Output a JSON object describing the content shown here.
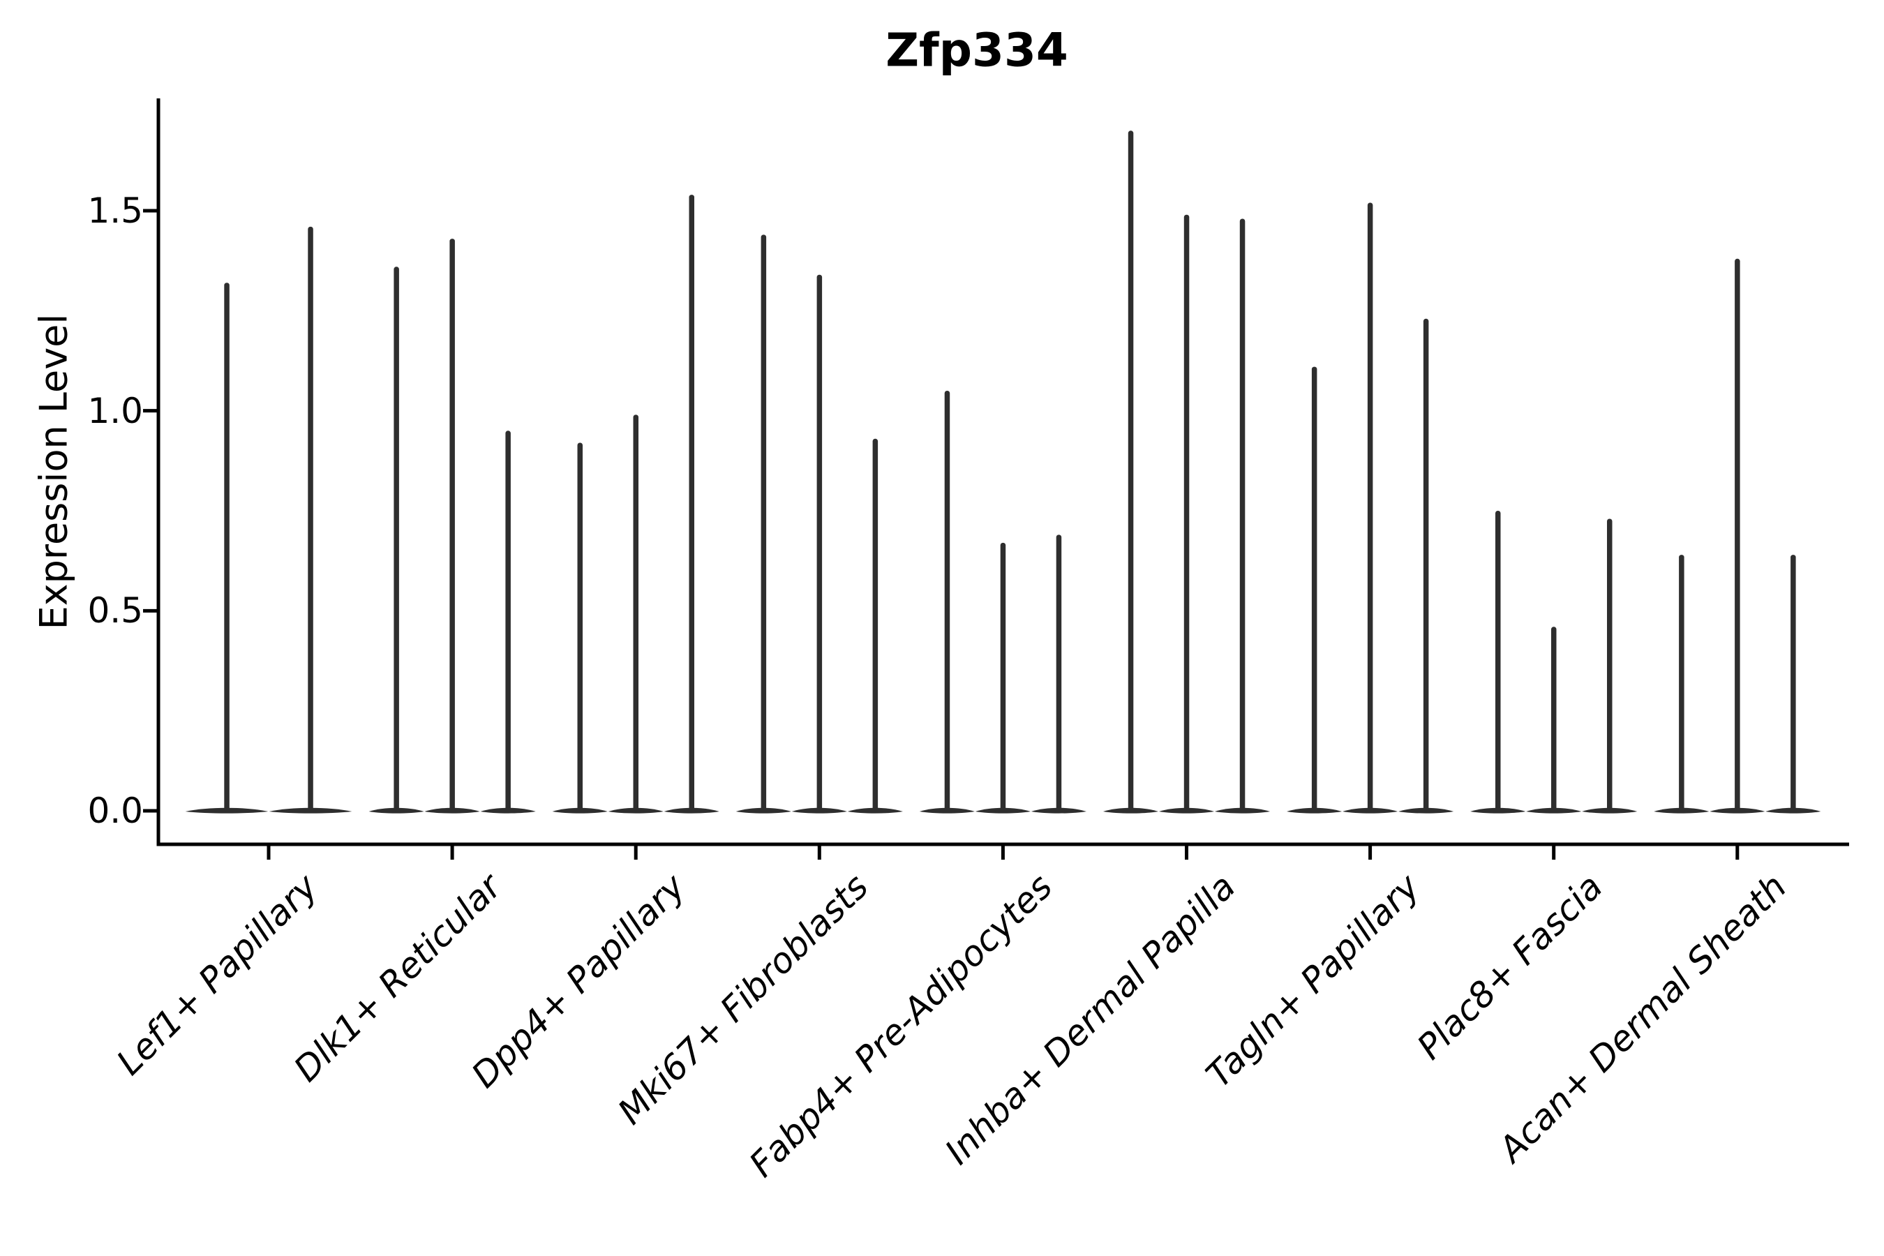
{
  "chart_data": {
    "type": "violin",
    "title": "Zfp334",
    "ylabel": "Expression Level",
    "xlabel": "",
    "legend": "none",
    "grid": false,
    "ytick_labels": [
      "0.0",
      "0.5",
      "1.0",
      "1.5"
    ],
    "ytick_values": [
      0.0,
      0.5,
      1.0,
      1.5
    ],
    "ylim": [
      -0.08,
      1.78
    ],
    "categories": [
      "Lef1+ Papillary",
      "Dlk1+ Reticular",
      "Dpp4+ Papillary",
      "Mki67+ Fibroblasts",
      "Fabp4+ Pre-Adipocytes",
      "Inhba+ Dermal Papilla",
      "Tagln+ Papillary",
      "Plac8+ Fascia",
      "Acan+ Dermal Sheath"
    ],
    "groups": [
      {
        "label": "Lef1+ Papillary",
        "violin_peaks": [
          1.32,
          1.46
        ]
      },
      {
        "label": "Dlk1+ Reticular",
        "violin_peaks": [
          1.36,
          1.43,
          0.95
        ]
      },
      {
        "label": "Dpp4+ Papillary",
        "violin_peaks": [
          0.92,
          0.99,
          1.54
        ]
      },
      {
        "label": "Mki67+ Fibroblasts",
        "violin_peaks": [
          1.44,
          1.34,
          0.93
        ]
      },
      {
        "label": "Fabp4+ Pre-Adipocytes",
        "violin_peaks": [
          1.05,
          0.67,
          0.69
        ]
      },
      {
        "label": "Inhba+ Dermal Papilla",
        "violin_peaks": [
          1.7,
          1.49,
          1.48
        ]
      },
      {
        "label": "Tagln+ Papillary",
        "violin_peaks": [
          1.11,
          1.52,
          1.23
        ]
      },
      {
        "label": "Plac8+ Fascia",
        "violin_peaks": [
          0.75,
          0.46,
          0.73
        ]
      },
      {
        "label": "Acan+ Dermal Sheath",
        "violin_peaks": [
          0.64,
          1.38,
          0.64
        ]
      }
    ],
    "violin_color": "#2e2e2e",
    "axis_color": "#000000"
  }
}
